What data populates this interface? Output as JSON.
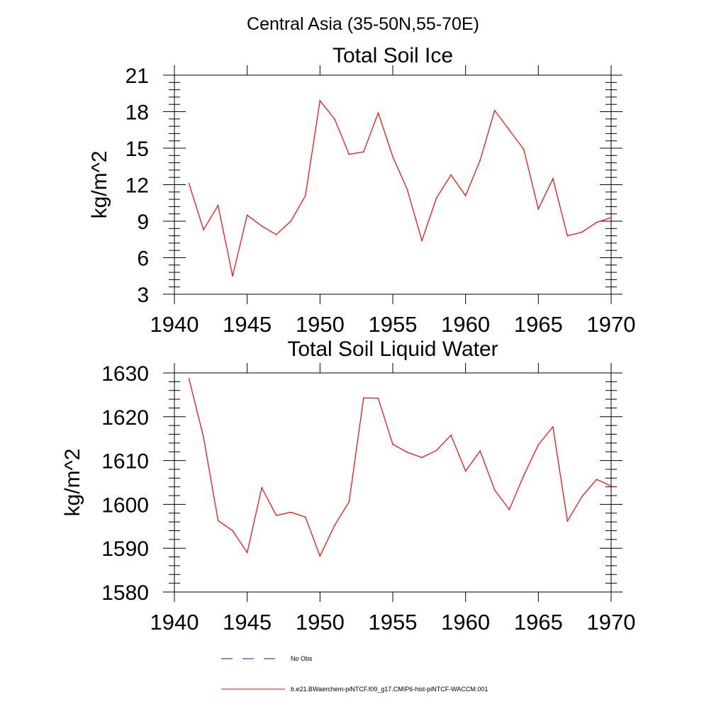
{
  "figure": {
    "main_title": "Central Asia (35-50N,55-70E)"
  },
  "colors": {
    "model_line": "#ff0000",
    "obs_line": "#1c1c8c",
    "axis": "#000000"
  },
  "chart_data": [
    {
      "type": "line",
      "title": "Total Soil Ice",
      "xlabel": "",
      "ylabel": "kg/m^2",
      "xlim": [
        1940,
        1970
      ],
      "ylim": [
        3,
        21
      ],
      "x_ticks": [
        1940,
        1945,
        1950,
        1955,
        1960,
        1965,
        1970
      ],
      "y_ticks": [
        3,
        6,
        9,
        12,
        15,
        18,
        21
      ],
      "grid": false,
      "series": [
        {
          "name": "b.e21.BWaerchem-piNTCF.f09_g17.CMIP6-hist-piNTCF-WACCM.001",
          "x": [
            1941,
            1942,
            1943,
            1944,
            1945,
            1946,
            1947,
            1948,
            1949,
            1950,
            1951,
            1952,
            1953,
            1954,
            1955,
            1956,
            1957,
            1958,
            1959,
            1960,
            1961,
            1962,
            1963,
            1964,
            1965,
            1966,
            1967,
            1968,
            1969,
            1970
          ],
          "values": [
            12.1,
            8.3,
            10.3,
            4.5,
            9.5,
            8.6,
            7.9,
            9.0,
            11.1,
            18.9,
            17.4,
            14.5,
            14.7,
            17.9,
            14.3,
            11.6,
            7.4,
            10.9,
            12.8,
            11.1,
            14.0,
            18.1,
            16.5,
            14.9,
            10.0,
            12.5,
            7.8,
            8.1,
            8.9,
            9.3
          ]
        }
      ]
    },
    {
      "type": "line",
      "title": "Total Soil Liquid Water",
      "xlabel": "",
      "ylabel": "kg/m^2",
      "xlim": [
        1940,
        1970
      ],
      "ylim": [
        1580,
        1630
      ],
      "x_ticks": [
        1940,
        1945,
        1950,
        1955,
        1960,
        1965,
        1970
      ],
      "y_ticks": [
        1580,
        1590,
        1600,
        1610,
        1620,
        1630
      ],
      "grid": false,
      "series": [
        {
          "name": "b.e21.BWaerchem-piNTCF.f09_g17.CMIP6-hist-piNTCF-WACCM.001",
          "x": [
            1941,
            1942,
            1943,
            1944,
            1945,
            1946,
            1947,
            1948,
            1949,
            1950,
            1951,
            1952,
            1953,
            1954,
            1955,
            1956,
            1957,
            1958,
            1959,
            1960,
            1961,
            1962,
            1963,
            1964,
            1965,
            1966,
            1967,
            1968,
            1969,
            1970
          ],
          "values": [
            1628.7,
            1615.3,
            1596.3,
            1594.0,
            1589.0,
            1603.8,
            1597.5,
            1598.2,
            1597.1,
            1588.2,
            1595.2,
            1600.6,
            1624.3,
            1624.2,
            1613.7,
            1611.9,
            1610.7,
            1612.3,
            1615.8,
            1607.6,
            1612.2,
            1603.3,
            1598.8,
            1606.6,
            1613.6,
            1617.7,
            1596.2,
            1601.8,
            1605.7,
            1604.2
          ]
        }
      ]
    }
  ],
  "legend": {
    "placement": "bottom",
    "entries": [
      {
        "label": "No Obs",
        "style": "dashed",
        "color": "#1c1c8c"
      },
      {
        "label": "b.e21.BWaerchem-piNTCF.f09_g17.CMIP6-hist-piNTCF-WACCM.001",
        "style": "solid",
        "color": "#ff0000"
      }
    ]
  }
}
